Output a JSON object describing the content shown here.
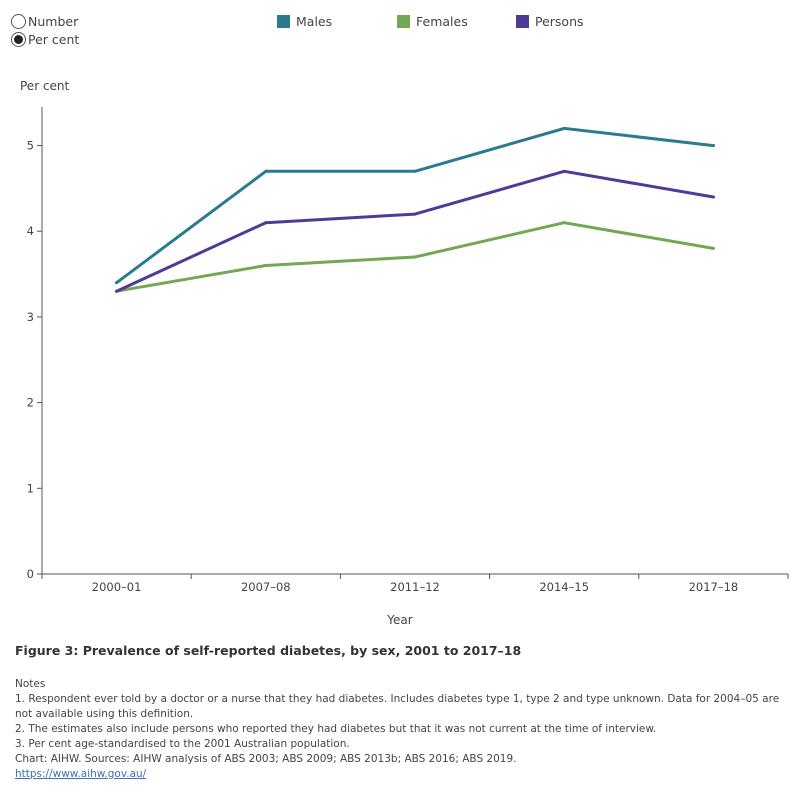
{
  "controls": {
    "options": [
      {
        "label": "Number",
        "selected": false
      },
      {
        "label": "Per cent",
        "selected": true
      }
    ]
  },
  "legend": [
    {
      "label": "Males",
      "color": "#2a7b8f"
    },
    {
      "label": "Females",
      "color": "#72a853"
    },
    {
      "label": "Persons",
      "color": "#513a96"
    }
  ],
  "chart_data": {
    "type": "line",
    "title": "Figure 3: Prevalence of self-reported diabetes, by sex, 2001 to 2017–18",
    "xlabel": "Year",
    "ylabel": "Per cent",
    "categories": [
      "2000–01",
      "2007–08",
      "2011–12",
      "2014–15",
      "2017–18"
    ],
    "yticks": [
      0,
      1,
      2,
      3,
      4,
      5
    ],
    "ylim": [
      0,
      5.45
    ],
    "grid": false,
    "series": [
      {
        "name": "Males",
        "color": "#2a7b8f",
        "values": [
          3.4,
          4.7,
          4.7,
          5.2,
          5.0
        ]
      },
      {
        "name": "Females",
        "color": "#72a853",
        "values": [
          3.3,
          3.6,
          3.7,
          4.1,
          3.8
        ]
      },
      {
        "name": "Persons",
        "color": "#513a96",
        "values": [
          3.3,
          4.1,
          4.2,
          4.7,
          4.4
        ]
      }
    ]
  },
  "notes": {
    "heading": "Notes",
    "items": [
      "1. Respondent ever told by a doctor or a nurse that they had diabetes. Includes diabetes type 1, type 2  and type unknown. Data for 2004–05 are not available using this definition.",
      "2. The estimates also include persons who reported they had diabetes but that it was not current at the time of interview.",
      "3. Per cent age-standardised to the 2001 Australian population."
    ],
    "source": "Chart: AIHW.  Sources: AIHW analysis of ABS 2003; ABS 2009; ABS 2013b; ABS 2016; ABS 2019.",
    "link": "https://www.aihw.gov.au/"
  }
}
